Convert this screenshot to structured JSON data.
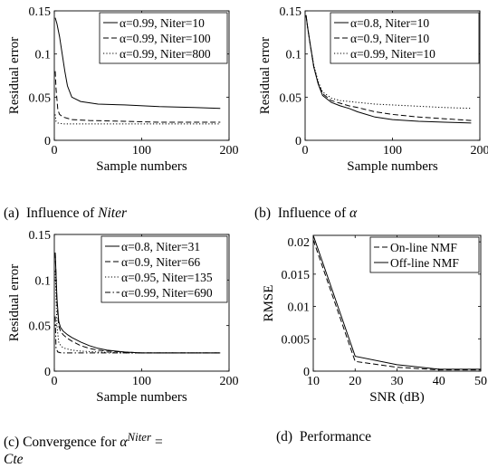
{
  "chart_data": [
    {
      "type": "line",
      "xlabel": "Sample numbers",
      "ylabel": "Residual error",
      "xlim": [
        0,
        200
      ],
      "ylim": [
        0,
        0.15
      ],
      "xticks": [
        0,
        100,
        200
      ],
      "yticks": [
        0,
        0.05,
        0.1,
        0.15
      ],
      "xtick_labels": [
        "0",
        "100",
        "200"
      ],
      "ytick_labels": [
        "0",
        "0.05",
        "0.1",
        "0.15"
      ],
      "legend": "top-right",
      "grid": false,
      "series": [
        {
          "name": "α=0.99, Niter=10",
          "style": "solid",
          "x": [
            1,
            3,
            6,
            9,
            12,
            15,
            20,
            30,
            50,
            80,
            120,
            160,
            190
          ],
          "y": [
            0.142,
            0.135,
            0.12,
            0.1,
            0.08,
            0.063,
            0.05,
            0.045,
            0.042,
            0.041,
            0.039,
            0.038,
            0.037
          ]
        },
        {
          "name": "α=0.99, Niter=100",
          "style": "dashed",
          "x": [
            1,
            2,
            4,
            6,
            10,
            20,
            40,
            80,
            120,
            160,
            190
          ],
          "y": [
            0.08,
            0.06,
            0.035,
            0.03,
            0.027,
            0.024,
            0.023,
            0.022,
            0.021,
            0.021,
            0.021
          ]
        },
        {
          "name": "α=0.99, Niter=800",
          "style": "dotted",
          "x": [
            1,
            2,
            4,
            10,
            40,
            100,
            190
          ],
          "y": [
            0.03,
            0.022,
            0.02,
            0.019,
            0.019,
            0.019,
            0.019
          ]
        }
      ]
    },
    {
      "type": "line",
      "xlabel": "Sample numbers",
      "ylabel": "Residual error",
      "xlim": [
        0,
        200
      ],
      "ylim": [
        0,
        0.15
      ],
      "xticks": [
        0,
        100,
        200
      ],
      "yticks": [
        0,
        0.05,
        0.1,
        0.15
      ],
      "xtick_labels": [
        "0",
        "100",
        "200"
      ],
      "ytick_labels": [
        "0",
        "0.05",
        "0.1",
        "0.15"
      ],
      "legend": "top-right",
      "grid": false,
      "series": [
        {
          "name": "α=0.8, Niter=10",
          "style": "solid",
          "x": [
            1,
            3,
            6,
            10,
            15,
            20,
            30,
            40,
            50,
            60,
            80,
            100,
            130,
            160,
            190
          ],
          "y": [
            0.145,
            0.13,
            0.11,
            0.085,
            0.065,
            0.052,
            0.044,
            0.04,
            0.037,
            0.033,
            0.027,
            0.024,
            0.022,
            0.021,
            0.02
          ]
        },
        {
          "name": "α=0.9, Niter=10",
          "style": "dashed",
          "x": [
            1,
            3,
            6,
            10,
            15,
            20,
            30,
            40,
            50,
            60,
            80,
            100,
            130,
            160,
            190
          ],
          "y": [
            0.145,
            0.13,
            0.11,
            0.085,
            0.066,
            0.054,
            0.046,
            0.043,
            0.04,
            0.038,
            0.033,
            0.03,
            0.027,
            0.025,
            0.023
          ]
        },
        {
          "name": "α=0.99, Niter=10",
          "style": "dotted",
          "x": [
            1,
            3,
            6,
            10,
            15,
            20,
            30,
            40,
            60,
            80,
            120,
            160,
            190
          ],
          "y": [
            0.145,
            0.13,
            0.11,
            0.087,
            0.068,
            0.056,
            0.049,
            0.046,
            0.044,
            0.042,
            0.04,
            0.038,
            0.037
          ]
        }
      ]
    },
    {
      "type": "line",
      "xlabel": "Sample numbers",
      "ylabel": "Residual error",
      "xlim": [
        0,
        200
      ],
      "ylim": [
        0,
        0.15
      ],
      "xticks": [
        0,
        100,
        200
      ],
      "yticks": [
        0,
        0.05,
        0.1,
        0.15
      ],
      "xtick_labels": [
        "0",
        "100",
        "200"
      ],
      "ytick_labels": [
        "0",
        "0.05",
        "0.1",
        "0.15"
      ],
      "legend": "top-right",
      "grid": false,
      "series": [
        {
          "name": "α=0.8, Niter=31",
          "style": "solid",
          "x": [
            1,
            3,
            5,
            7,
            10,
            15,
            20,
            30,
            40,
            50,
            60,
            80,
            100,
            150,
            190
          ],
          "y": [
            0.13,
            0.08,
            0.055,
            0.048,
            0.044,
            0.04,
            0.037,
            0.032,
            0.028,
            0.025,
            0.023,
            0.021,
            0.02,
            0.02,
            0.02
          ]
        },
        {
          "name": "α=0.9, Niter=66",
          "style": "dashed",
          "x": [
            1,
            3,
            5,
            7,
            10,
            15,
            20,
            30,
            40,
            50,
            60,
            80,
            100,
            150,
            190
          ],
          "y": [
            0.13,
            0.075,
            0.05,
            0.044,
            0.04,
            0.036,
            0.033,
            0.028,
            0.025,
            0.023,
            0.022,
            0.021,
            0.02,
            0.02,
            0.02
          ]
        },
        {
          "name": "α=0.95, Niter=135",
          "style": "dotted",
          "x": [
            1,
            3,
            5,
            8,
            12,
            20,
            30,
            50,
            80,
            120,
            190
          ],
          "y": [
            0.11,
            0.05,
            0.032,
            0.027,
            0.025,
            0.023,
            0.022,
            0.021,
            0.02,
            0.02,
            0.02
          ]
        },
        {
          "name": "α=0.99, Niter=690",
          "style": "dashdot",
          "x": [
            1,
            2,
            4,
            8,
            20,
            60,
            120,
            190
          ],
          "y": [
            0.06,
            0.025,
            0.021,
            0.02,
            0.02,
            0.02,
            0.02,
            0.02
          ]
        }
      ]
    },
    {
      "type": "line",
      "xlabel": "SNR (dB)",
      "ylabel": "RMSE",
      "xlim": [
        10,
        50
      ],
      "ylim": [
        0,
        0.021
      ],
      "xticks": [
        10,
        20,
        30,
        40,
        50
      ],
      "yticks": [
        0,
        0.005,
        0.01,
        0.015,
        0.02
      ],
      "xtick_labels": [
        "10",
        "20",
        "30",
        "40",
        "50"
      ],
      "ytick_labels": [
        "0",
        "0.005",
        "0.01",
        "0.015",
        "0.02"
      ],
      "legend": "top-right",
      "grid": false,
      "series": [
        {
          "name": "On-line NMF",
          "style": "dashed",
          "x": [
            10,
            20,
            30,
            40,
            50
          ],
          "y": [
            0.0203,
            0.0015,
            0.0006,
            0.0002,
            0.0002
          ]
        },
        {
          "name": "Off-line NMF",
          "style": "solid",
          "x": [
            10,
            20,
            30,
            40,
            50
          ],
          "y": [
            0.021,
            0.0023,
            0.001,
            0.0003,
            0.0003
          ]
        }
      ]
    }
  ],
  "captions": {
    "a": {
      "label": "(a)",
      "text": "Influence of",
      "math": "Niter"
    },
    "b": {
      "label": "(b)",
      "text": "Influence of",
      "math": "α"
    },
    "c": {
      "label": "(c)",
      "text": "Convergence for",
      "math_base": "α",
      "math_sup": "Niter",
      "math_tail": "=",
      "line2": "Cte"
    },
    "d": {
      "label": "(d)",
      "text": "Performance"
    }
  }
}
